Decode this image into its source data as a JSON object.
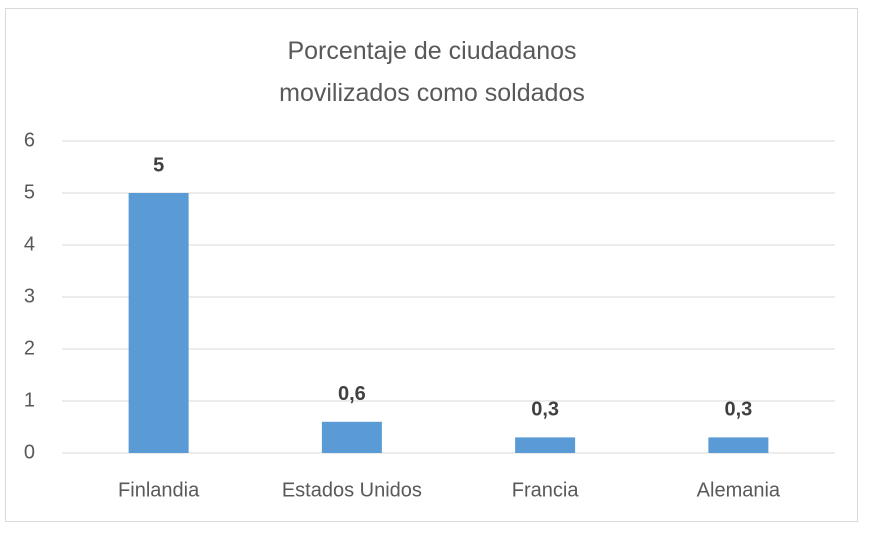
{
  "chart_data": {
    "type": "bar",
    "title": "Porcentaje de ciudadanos movilizados como soldados",
    "categories": [
      "Finlandia",
      "Estados Unidos",
      "Francia",
      "Alemania"
    ],
    "values": [
      5,
      0.6,
      0.3,
      0.3
    ],
    "value_labels": [
      "5",
      "0,6",
      "0,3",
      "0,3"
    ],
    "color": "#5b9bd5",
    "ylim": [
      0,
      6
    ],
    "yticks": [
      0,
      1,
      2,
      3,
      4,
      5,
      6
    ],
    "grid": true
  }
}
